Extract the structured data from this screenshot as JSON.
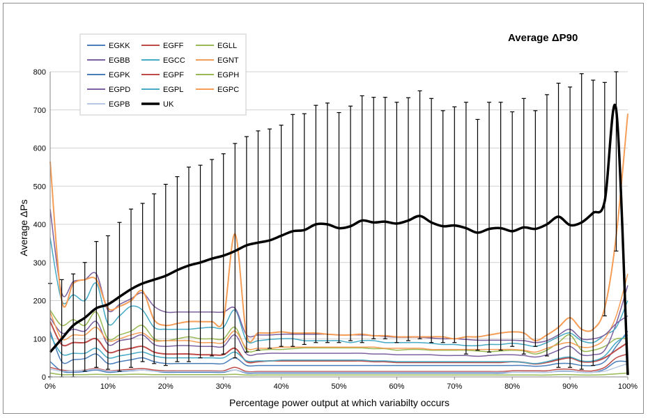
{
  "chart_data": {
    "type": "line",
    "title": "Average ΔP90",
    "xlabel": "Percentage power output at which variabilty occurs",
    "ylabel": "Average ΔPs",
    "xlim": [
      0,
      100
    ],
    "ylim": [
      0,
      800
    ],
    "x_ticks": [
      "0%",
      "10%",
      "20%",
      "30%",
      "40%",
      "50%",
      "60%",
      "70%",
      "80%",
      "90%",
      "100%"
    ],
    "y_ticks": [
      "0",
      "100",
      "200",
      "300",
      "400",
      "500",
      "600",
      "700",
      "800"
    ],
    "grid": "horizontal",
    "legend_position": "top-left",
    "x": [
      0,
      2,
      4,
      6,
      8,
      10,
      12,
      14,
      16,
      18,
      20,
      22,
      24,
      26,
      28,
      30,
      32,
      34,
      36,
      38,
      40,
      42,
      44,
      46,
      48,
      50,
      52,
      54,
      56,
      58,
      60,
      62,
      64,
      66,
      68,
      70,
      72,
      74,
      76,
      78,
      80,
      82,
      84,
      86,
      88,
      90,
      92,
      94,
      96,
      98,
      100
    ],
    "series": [
      {
        "name": "EGKK",
        "color": "#4a7ebb",
        "width": 1.5,
        "values": [
          40,
          15,
          12,
          14,
          18,
          12,
          14,
          16,
          18,
          15,
          12,
          12,
          12,
          12,
          12,
          12,
          18,
          10,
          10,
          10,
          10,
          10,
          10,
          10,
          10,
          10,
          10,
          10,
          10,
          10,
          10,
          10,
          10,
          10,
          10,
          10,
          10,
          10,
          10,
          10,
          12,
          12,
          12,
          12,
          15,
          15,
          12,
          12,
          20,
          40,
          40
        ]
      },
      {
        "name": "EGFF",
        "color": "#be4b48",
        "width": 1.5,
        "values": [
          25,
          18,
          16,
          18,
          22,
          16,
          18,
          20,
          22,
          18,
          16,
          16,
          16,
          16,
          16,
          16,
          25,
          14,
          14,
          14,
          14,
          14,
          14,
          14,
          14,
          14,
          14,
          14,
          14,
          14,
          14,
          14,
          14,
          14,
          14,
          14,
          14,
          14,
          14,
          14,
          16,
          16,
          16,
          16,
          20,
          20,
          16,
          16,
          25,
          50,
          60
        ]
      },
      {
        "name": "EGLL",
        "color": "#98b954",
        "width": 1.5,
        "values": [
          175,
          135,
          150,
          135,
          170,
          100,
          110,
          120,
          135,
          100,
          95,
          100,
          105,
          100,
          100,
          100,
          130,
          70,
          70,
          72,
          72,
          74,
          76,
          76,
          76,
          76,
          76,
          76,
          74,
          74,
          70,
          72,
          72,
          70,
          70,
          70,
          70,
          68,
          66,
          68,
          70,
          68,
          60,
          70,
          90,
          110,
          70,
          70,
          80,
          100,
          100
        ]
      },
      {
        "name": "EGBB",
        "color": "#7d60a0",
        "width": 1.5,
        "values": [
          155,
          115,
          125,
          120,
          145,
          85,
          95,
          100,
          110,
          85,
          80,
          82,
          82,
          80,
          80,
          80,
          110,
          60,
          60,
          62,
          62,
          62,
          62,
          62,
          62,
          62,
          62,
          62,
          60,
          60,
          58,
          58,
          58,
          58,
          56,
          56,
          56,
          54,
          56,
          58,
          58,
          56,
          52,
          58,
          70,
          80,
          58,
          58,
          70,
          140,
          240
        ]
      },
      {
        "name": "EGCC",
        "color": "#46aac5",
        "width": 1.5,
        "values": [
          365,
          200,
          215,
          200,
          245,
          140,
          160,
          185,
          175,
          130,
          125,
          125,
          125,
          128,
          130,
          130,
          175,
          95,
          95,
          98,
          100,
          100,
          95,
          95,
          95,
          95,
          90,
          95,
          95,
          90,
          90,
          90,
          90,
          88,
          85,
          85,
          82,
          82,
          85,
          85,
          88,
          85,
          80,
          90,
          105,
          115,
          95,
          90,
          110,
          130,
          200
        ]
      },
      {
        "name": "EGNT",
        "color": "#f59d56",
        "width": 1.5,
        "values": [
          170,
          100,
          110,
          110,
          130,
          95,
          100,
          110,
          115,
          95,
          95,
          95,
          95,
          90,
          90,
          90,
          120,
          75,
          75,
          75,
          78,
          78,
          78,
          78,
          78,
          78,
          78,
          78,
          78,
          75,
          75,
          75,
          75,
          72,
          72,
          72,
          72,
          72,
          72,
          72,
          72,
          70,
          65,
          75,
          85,
          90,
          78,
          80,
          100,
          160,
          270
        ]
      },
      {
        "name": "EGPK",
        "color": "#4a7ebb",
        "width": 1.5,
        "values": [
          120,
          40,
          45,
          48,
          60,
          35,
          40,
          45,
          50,
          40,
          35,
          35,
          35,
          35,
          35,
          35,
          50,
          30,
          30,
          30,
          30,
          30,
          30,
          30,
          30,
          30,
          30,
          30,
          30,
          30,
          30,
          30,
          30,
          30,
          30,
          30,
          30,
          30,
          30,
          30,
          30,
          30,
          28,
          30,
          35,
          35,
          30,
          30,
          40,
          80,
          120
        ]
      },
      {
        "name": "EGPF",
        "color": "#be4b48",
        "width": 2.0,
        "values": [
          145,
          85,
          90,
          90,
          100,
          65,
          70,
          75,
          80,
          65,
          60,
          60,
          60,
          58,
          58,
          58,
          75,
          40,
          40,
          42,
          42,
          42,
          42,
          42,
          42,
          42,
          42,
          42,
          40,
          40,
          38,
          38,
          38,
          38,
          38,
          38,
          38,
          38,
          38,
          38,
          40,
          38,
          34,
          38,
          45,
          50,
          40,
          40,
          50,
          70,
          90
        ]
      },
      {
        "name": "EGPH",
        "color": "#98b954",
        "width": 1.5,
        "values": [
          10,
          6,
          6,
          6,
          7,
          6,
          6,
          7,
          7,
          6,
          6,
          6,
          6,
          6,
          6,
          6,
          7,
          5,
          5,
          5,
          5,
          5,
          5,
          5,
          5,
          5,
          5,
          5,
          5,
          5,
          5,
          5,
          5,
          5,
          5,
          5,
          5,
          5,
          5,
          5,
          5,
          5,
          5,
          5,
          6,
          6,
          5,
          5,
          6,
          8,
          10
        ]
      },
      {
        "name": "EGPD",
        "color": "#7d60a0",
        "width": 1.5,
        "values": [
          440,
          220,
          250,
          255,
          270,
          175,
          190,
          205,
          220,
          185,
          170,
          170,
          170,
          170,
          170,
          170,
          180,
          110,
          110,
          110,
          112,
          112,
          112,
          112,
          112,
          110,
          110,
          110,
          108,
          106,
          104,
          104,
          104,
          102,
          100,
          100,
          98,
          96,
          96,
          96,
          96,
          95,
          90,
          95,
          110,
          125,
          100,
          100,
          110,
          140,
          160
        ]
      },
      {
        "name": "EGPL",
        "color": "#46aac5",
        "width": 1.5,
        "values": [
          110,
          60,
          62,
          62,
          75,
          50,
          55,
          60,
          65,
          55,
          50,
          50,
          50,
          50,
          50,
          50,
          65,
          42,
          42,
          42,
          44,
          44,
          44,
          44,
          44,
          44,
          44,
          44,
          42,
          42,
          40,
          40,
          40,
          40,
          40,
          40,
          40,
          40,
          40,
          40,
          40,
          38,
          35,
          40,
          48,
          52,
          42,
          42,
          55,
          90,
          110
        ]
      },
      {
        "name": "EGPC",
        "color": "#f59d56",
        "width": 2.0,
        "values": [
          565,
          200,
          245,
          255,
          255,
          180,
          185,
          200,
          225,
          150,
          135,
          140,
          145,
          145,
          145,
          150,
          375,
          110,
          115,
          115,
          118,
          115,
          115,
          115,
          112,
          110,
          110,
          112,
          108,
          108,
          105,
          105,
          105,
          105,
          105,
          100,
          105,
          105,
          110,
          115,
          118,
          115,
          95,
          110,
          130,
          155,
          125,
          125,
          180,
          370,
          690
        ]
      },
      {
        "name": "EGPB",
        "color": "#b9c8e2",
        "width": 1.5,
        "values": [
          20,
          15,
          16,
          17,
          20,
          15,
          16,
          17,
          18,
          15,
          14,
          14,
          14,
          14,
          14,
          14,
          18,
          12,
          12,
          12,
          12,
          12,
          12,
          12,
          12,
          12,
          12,
          12,
          12,
          12,
          12,
          12,
          12,
          12,
          12,
          12,
          12,
          12,
          12,
          12,
          12,
          12,
          12,
          12,
          14,
          14,
          12,
          12,
          15,
          25,
          35
        ]
      },
      {
        "name": "UK",
        "color": "#000000",
        "width": 3.5,
        "values": [
          65,
          100,
          135,
          155,
          180,
          190,
          210,
          230,
          245,
          255,
          265,
          280,
          292,
          300,
          310,
          318,
          330,
          345,
          352,
          358,
          370,
          382,
          385,
          400,
          400,
          390,
          395,
          410,
          405,
          407,
          402,
          410,
          422,
          405,
          395,
          397,
          390,
          378,
          388,
          390,
          382,
          392,
          388,
          400,
          420,
          398,
          405,
          430,
          460,
          700,
          5
        ]
      }
    ],
    "error_bars": {
      "x": [
        0,
        2,
        4,
        6,
        8,
        10,
        12,
        14,
        16,
        18,
        20,
        22,
        24,
        26,
        28,
        30,
        32,
        34,
        36,
        38,
        40,
        42,
        44,
        46,
        48,
        50,
        52,
        54,
        56,
        58,
        60,
        62,
        64,
        66,
        68,
        70,
        72,
        74,
        76,
        78,
        80,
        82,
        84,
        86,
        88,
        90,
        92,
        94,
        96,
        98
      ],
      "upper": [
        245,
        255,
        270,
        300,
        355,
        370,
        405,
        440,
        455,
        480,
        505,
        525,
        550,
        555,
        570,
        585,
        612,
        630,
        645,
        650,
        660,
        688,
        690,
        712,
        718,
        693,
        710,
        737,
        733,
        733,
        720,
        732,
        750,
        730,
        698,
        708,
        720,
        675,
        720,
        720,
        695,
        730,
        698,
        740,
        770,
        760,
        795,
        778,
        772,
        800
      ],
      "lower": [
        0,
        0,
        0,
        15,
        25,
        20,
        15,
        25,
        40,
        35,
        30,
        40,
        40,
        50,
        55,
        60,
        50,
        65,
        70,
        75,
        80,
        80,
        85,
        90,
        90,
        90,
        95,
        90,
        100,
        100,
        90,
        95,
        100,
        90,
        90,
        90,
        60,
        70,
        65,
        70,
        80,
        60,
        80,
        55,
        25,
        25,
        20,
        30,
        160,
        330
      ]
    }
  }
}
